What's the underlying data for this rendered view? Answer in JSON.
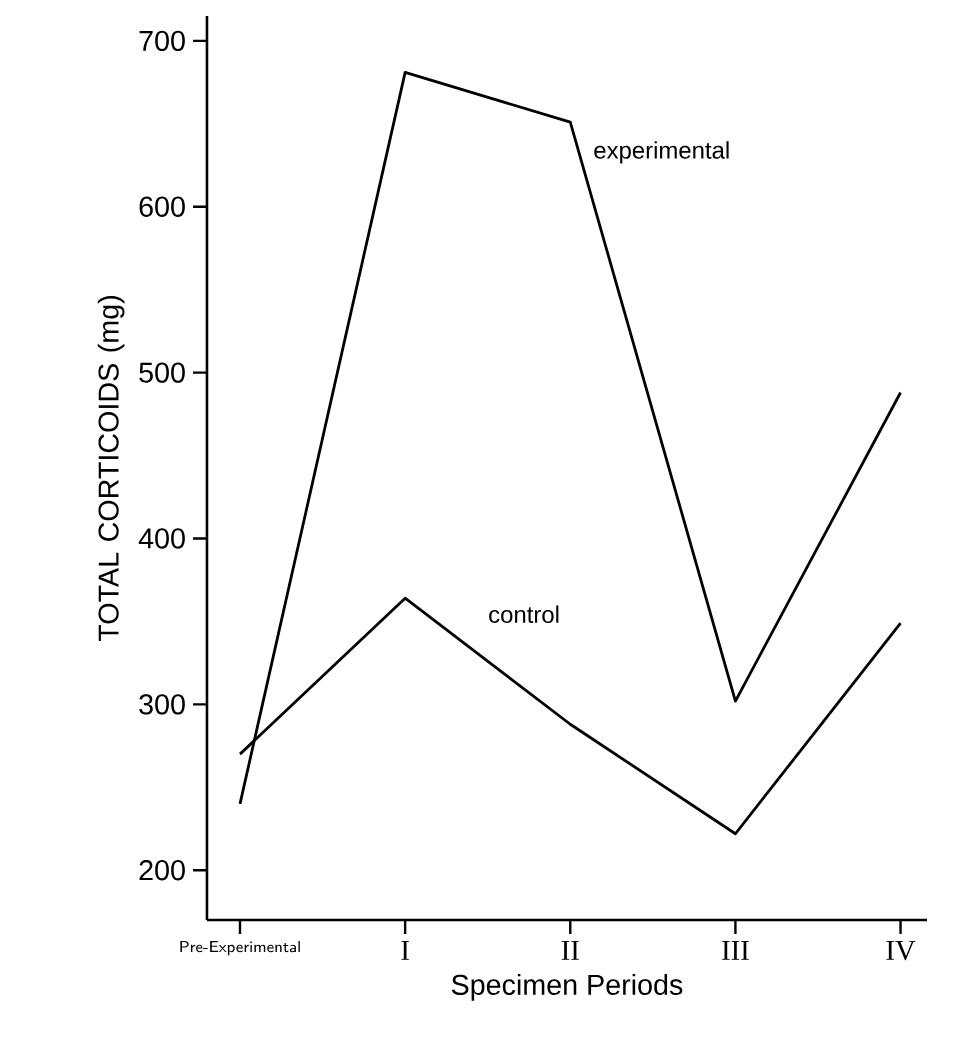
{
  "chart_data": {
    "type": "line",
    "xlabel": "Specimen Periods",
    "ylabel": "TOTAL CORTICOIDS (mg)",
    "categories": [
      "Pre-Experimental",
      "I",
      "II",
      "III",
      "IV"
    ],
    "series": [
      {
        "name": "experimental",
        "color": "#000000",
        "values": [
          240,
          681,
          651,
          302,
          488
        ]
      },
      {
        "name": "control",
        "color": "#000000",
        "values": [
          270,
          364,
          288,
          222,
          349
        ]
      }
    ],
    "ylim": [
      170,
      715
    ],
    "yticks": [
      200,
      300,
      400,
      500,
      600,
      700
    ],
    "grid": false,
    "legend": false,
    "marker": "none",
    "line_style": "solid"
  }
}
